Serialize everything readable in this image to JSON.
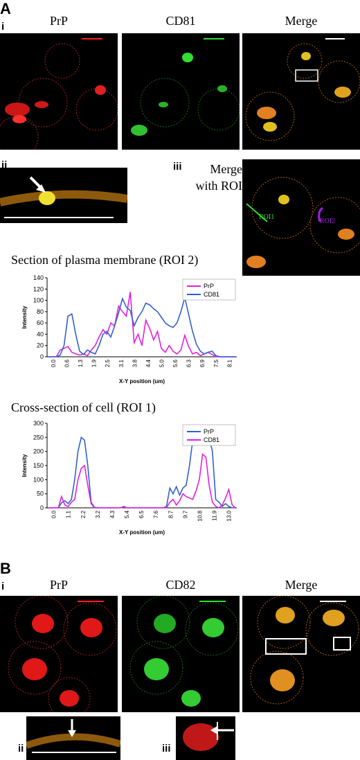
{
  "figure": {
    "panelA": {
      "letter": "A",
      "sub_i": "i",
      "sub_ii": "ii",
      "sub_iii": "iii",
      "channel_labels": [
        "PrP",
        "CD81",
        "Merge"
      ],
      "merge_roi_label": "Merge\nwith ROI",
      "roi_labels": [
        "ROI1",
        "ROI2"
      ]
    },
    "panelB": {
      "letter": "B",
      "sub_i": "i",
      "sub_ii": "ii",
      "sub_iii": "iii",
      "channel_labels": [
        "PrP",
        "CD82",
        "Merge"
      ]
    },
    "colors": {
      "red": "#ff2020",
      "green": "#33dd33",
      "merge": "#e0c020",
      "pink": "#e020e0",
      "blue": "#3060d0"
    }
  },
  "chart_data": [
    {
      "type": "line",
      "title": "Section of plasma membrane (ROI 2)",
      "xlabel": "X-Y position (um)",
      "ylabel": "Intensity",
      "ylim": [
        0,
        140
      ],
      "yticks": [
        0,
        20,
        40,
        60,
        80,
        100,
        120,
        140
      ],
      "xticks": [
        "0.0",
        "0.6",
        "1.3",
        "1.9",
        "2.5",
        "3.1",
        "3.8",
        "4.4",
        "5.0",
        "5.6",
        "6.3",
        "6.9",
        "7.5",
        "8.1"
      ],
      "legend": "top-right",
      "series": [
        {
          "name": "PrP",
          "color": "#e020e0",
          "values": [
            0,
            0,
            0,
            12,
            15,
            18,
            8,
            5,
            3,
            5,
            2,
            12,
            20,
            35,
            48,
            40,
            60,
            55,
            90,
            80,
            72,
            115,
            25,
            40,
            20,
            65,
            50,
            30,
            45,
            15,
            8,
            20,
            10,
            5,
            12,
            38,
            18,
            5,
            8,
            2,
            5,
            8,
            4,
            0,
            0,
            0,
            0,
            0,
            0
          ]
        },
        {
          "name": "CD81",
          "color": "#3060d0",
          "values": [
            0,
            0,
            0,
            3,
            20,
            72,
            76,
            40,
            10,
            4,
            12,
            8,
            5,
            20,
            40,
            45,
            35,
            55,
            78,
            103,
            88,
            82,
            55,
            70,
            80,
            95,
            92,
            85,
            80,
            70,
            60,
            55,
            52,
            60,
            80,
            105,
            75,
            45,
            22,
            10,
            5,
            8,
            10,
            2,
            0,
            0,
            0,
            0,
            0
          ]
        }
      ]
    },
    {
      "type": "line",
      "title": "Cross-section of cell (ROI 1)",
      "xlabel": "X-Y position (um)",
      "ylabel": "Intensity",
      "ylim": [
        0,
        300
      ],
      "yticks": [
        0,
        50,
        100,
        150,
        200,
        250,
        300
      ],
      "xticks": [
        "0.0",
        "1.1",
        "2.2",
        "3.2",
        "4.3",
        "5.4",
        "6.5",
        "7.6",
        "8.7",
        "9.7",
        "10.8",
        "11.9",
        "13.0"
      ],
      "legend": "top-right",
      "series": [
        {
          "name": "PrP",
          "color": "#3060d0",
          "values": [
            0,
            0,
            0,
            0,
            18,
            25,
            15,
            30,
            100,
            200,
            250,
            240,
            150,
            20,
            2,
            0,
            0,
            0,
            0,
            0,
            0,
            0,
            0,
            5,
            0,
            0,
            0,
            0,
            0,
            0,
            0,
            0,
            0,
            0,
            0,
            0,
            5,
            70,
            50,
            75,
            45,
            70,
            80,
            150,
            240,
            250,
            255,
            235,
            255,
            250,
            200,
            30,
            20,
            5,
            15,
            5,
            0,
            0
          ]
        },
        {
          "name": "CD81",
          "color": "#e020e0",
          "values": [
            0,
            0,
            0,
            0,
            40,
            10,
            5,
            20,
            30,
            100,
            140,
            150,
            80,
            15,
            0,
            0,
            0,
            0,
            0,
            0,
            0,
            0,
            0,
            3,
            0,
            0,
            0,
            0,
            0,
            0,
            0,
            0,
            0,
            0,
            0,
            0,
            0,
            20,
            30,
            10,
            25,
            50,
            40,
            35,
            30,
            60,
            100,
            190,
            180,
            80,
            20,
            5,
            0,
            10,
            35,
            65,
            10,
            0
          ]
        }
      ]
    }
  ]
}
